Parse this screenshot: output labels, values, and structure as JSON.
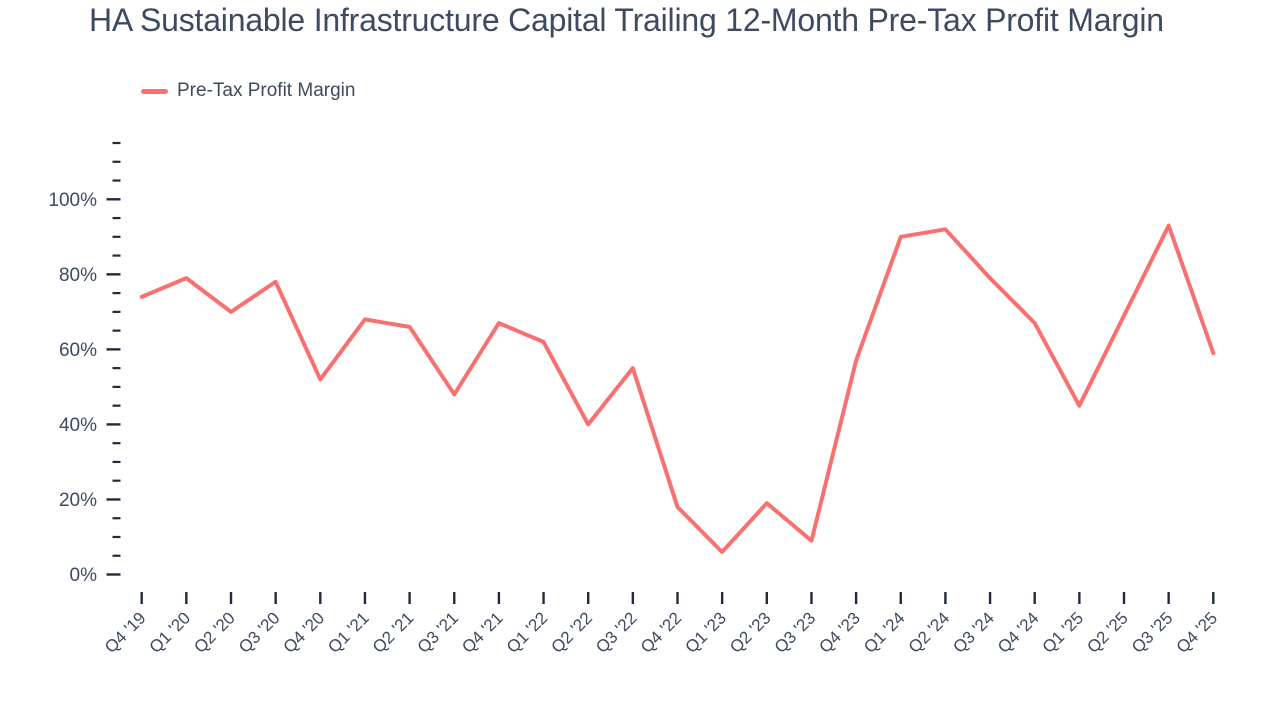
{
  "page": {
    "title": "HA Sustainable Infrastructure Capital Trailing 12-Month Pre-Tax Profit Margin"
  },
  "legend": {
    "label": "Pre-Tax Profit Margin"
  },
  "colors": {
    "line": "#f87171",
    "text": "#3e4a5f",
    "tick": "#212b3c"
  },
  "chart_data": {
    "type": "line",
    "title": "HA Sustainable Infrastructure Capital Trailing 12-Month Pre-Tax Profit Margin",
    "xlabel": "",
    "ylabel": "",
    "unit": "%",
    "grid": false,
    "legend_position": "top-left",
    "ylim": [
      0,
      115
    ],
    "y_major_ticks": [
      0,
      20,
      40,
      60,
      80,
      100
    ],
    "y_tick_labels": [
      "0%",
      "20%",
      "40%",
      "60%",
      "80%",
      "100%"
    ],
    "y_minor_tick_step": 5,
    "categories": [
      "Q4 '19",
      "Q1 '20",
      "Q2 '20",
      "Q3 '20",
      "Q4 '20",
      "Q1 '21",
      "Q2 '21",
      "Q3 '21",
      "Q4 '21",
      "Q1 '22",
      "Q2 '22",
      "Q3 '22",
      "Q4 '22",
      "Q1 '23",
      "Q2 '23",
      "Q3 '23",
      "Q4 '23",
      "Q1 '24",
      "Q2 '24",
      "Q3 '24",
      "Q4 '24",
      "Q1 '25",
      "Q2 '25",
      "Q3 '25",
      "Q4 '25"
    ],
    "series": [
      {
        "name": "Pre-Tax Profit Margin",
        "color": "#f87171",
        "values": [
          74,
          79,
          70,
          78,
          52,
          68,
          66,
          48,
          67,
          62,
          40,
          55,
          18,
          6,
          19,
          9,
          57,
          90,
          92,
          79,
          67,
          45,
          69,
          93,
          59
        ]
      }
    ]
  }
}
